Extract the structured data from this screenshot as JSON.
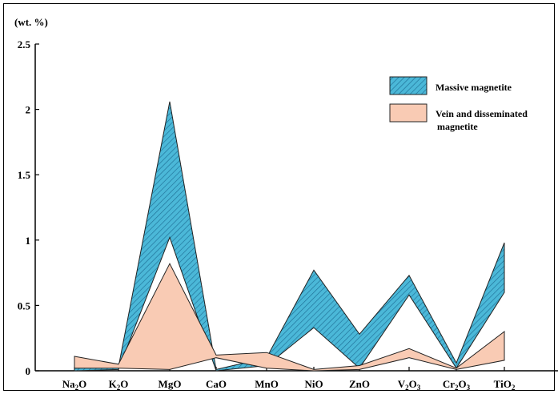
{
  "chart_data": {
    "type": "area",
    "title": "",
    "unit_label": "(wt. %)",
    "xlabel": "",
    "ylabel": "",
    "ylim": [
      0,
      2.5
    ],
    "yticks": [
      "0",
      "0.5",
      "1",
      "1.5",
      "2",
      "2.5"
    ],
    "categories": [
      {
        "base": "Na",
        "sub": "2",
        "tail": "O"
      },
      {
        "base": "K",
        "sub": "2",
        "tail": "O"
      },
      {
        "base": "MgO",
        "sub": "",
        "tail": ""
      },
      {
        "base": "CaO",
        "sub": "",
        "tail": ""
      },
      {
        "base": "MnO",
        "sub": "",
        "tail": ""
      },
      {
        "base": "NiO",
        "sub": "",
        "tail": ""
      },
      {
        "base": "ZnO",
        "sub": "",
        "tail": ""
      },
      {
        "base": "V",
        "sub": "2",
        "tail": "O",
        "sub2": "3"
      },
      {
        "base": "Cr",
        "sub": "2",
        "tail": "O",
        "sub2": "3"
      },
      {
        "base": "TiO",
        "sub": "2",
        "tail": ""
      }
    ],
    "series": [
      {
        "name": "Massive magnetite",
        "color": "#4bb8d8",
        "upper": [
          0.02,
          0.03,
          2.06,
          0.01,
          0.1,
          0.77,
          0.28,
          0.73,
          0.06,
          0.98
        ],
        "lower": [
          0.0,
          0.01,
          1.02,
          0.0,
          0.04,
          0.33,
          0.02,
          0.58,
          0.02,
          0.6
        ]
      },
      {
        "name": "Vein and disseminated magnetite",
        "color": "#f9cbb4",
        "upper": [
          0.11,
          0.05,
          0.82,
          0.12,
          0.14,
          0.01,
          0.04,
          0.17,
          0.02,
          0.3
        ],
        "lower": [
          0.02,
          0.02,
          0.01,
          0.1,
          0.02,
          0.0,
          0.01,
          0.1,
          0.01,
          0.08
        ]
      }
    ],
    "legend": {
      "position": "top-right",
      "items": [
        "Massive magnetite",
        "Vein and disseminated",
        "magnetite"
      ]
    },
    "grid": false
  }
}
